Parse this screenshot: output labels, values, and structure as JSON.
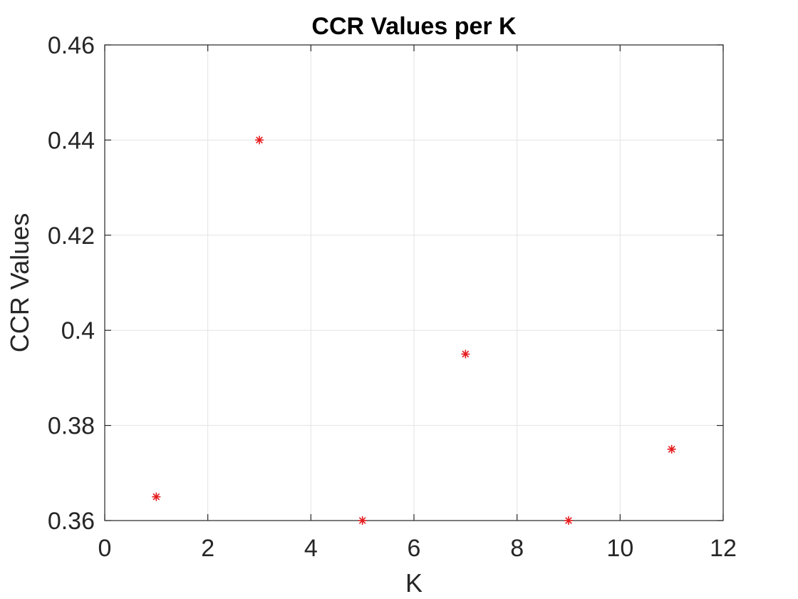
{
  "chart_data": {
    "type": "scatter",
    "title": "CCR Values per K",
    "xlabel": "K",
    "ylabel": "CCR Values",
    "xlim": [
      0,
      12
    ],
    "ylim": [
      0.36,
      0.46
    ],
    "xticks": [
      0,
      2,
      4,
      6,
      8,
      10,
      12
    ],
    "xtick_labels": [
      "0",
      "2",
      "4",
      "6",
      "8",
      "10",
      "12"
    ],
    "yticks": [
      0.36,
      0.38,
      0.4,
      0.42,
      0.44,
      0.46
    ],
    "ytick_labels": [
      "0.36",
      "0.38",
      "0.4",
      "0.42",
      "0.44",
      "0.46"
    ],
    "grid": true,
    "marker": "asterisk",
    "marker_color": "#e41a1c",
    "series": [
      {
        "x": [
          1,
          3,
          5,
          7,
          9,
          11
        ],
        "y": [
          0.365,
          0.44,
          0.36,
          0.395,
          0.36,
          0.375
        ]
      }
    ]
  }
}
